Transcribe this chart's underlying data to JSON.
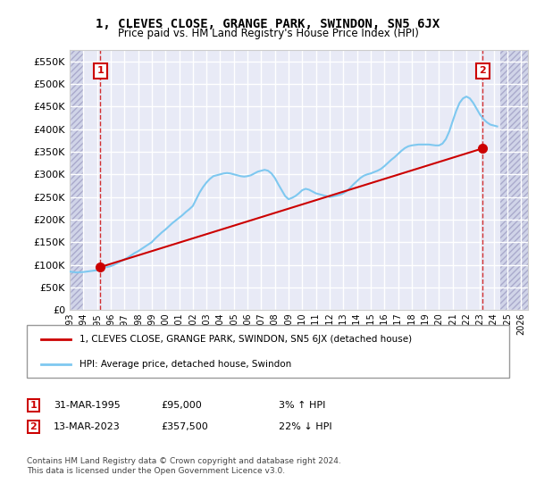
{
  "title": "1, CLEVES CLOSE, GRANGE PARK, SWINDON, SN5 6JX",
  "subtitle": "Price paid vs. HM Land Registry's House Price Index (HPI)",
  "ylabel": "",
  "ylim": [
    0,
    575000
  ],
  "yticks": [
    0,
    50000,
    100000,
    150000,
    200000,
    250000,
    300000,
    350000,
    400000,
    450000,
    500000,
    550000
  ],
  "ytick_labels": [
    "£0",
    "£50K",
    "£100K",
    "£150K",
    "£200K",
    "£250K",
    "£300K",
    "£350K",
    "£400K",
    "£450K",
    "£500K",
    "£550K"
  ],
  "xlim_start": 1993.0,
  "xlim_end": 2026.5,
  "xticks": [
    1993,
    1994,
    1995,
    1996,
    1997,
    1998,
    1999,
    2000,
    2001,
    2002,
    2003,
    2004,
    2005,
    2006,
    2007,
    2008,
    2009,
    2010,
    2011,
    2012,
    2013,
    2014,
    2015,
    2016,
    2017,
    2018,
    2019,
    2020,
    2021,
    2022,
    2023,
    2024,
    2025,
    2026
  ],
  "background_plot": "#e8eaf6",
  "background_hatch": "#d0d4e8",
  "grid_color": "#ffffff",
  "hpi_line_color": "#7ec8f0",
  "price_line_color": "#cc0000",
  "sale1_x": 1995.25,
  "sale1_y": 95000,
  "sale2_x": 2023.2,
  "sale2_y": 357500,
  "legend_label1": "1, CLEVES CLOSE, GRANGE PARK, SWINDON, SN5 6JX (detached house)",
  "legend_label2": "HPI: Average price, detached house, Swindon",
  "annotation1_label": "1",
  "annotation2_label": "2",
  "table_row1": [
    "1",
    "31-MAR-1995",
    "£95,000",
    "3% ↑ HPI"
  ],
  "table_row2": [
    "2",
    "13-MAR-2023",
    "£357,500",
    "22% ↓ HPI"
  ],
  "footer": "Contains HM Land Registry data © Crown copyright and database right 2024.\nThis data is licensed under the Open Government Licence v3.0.",
  "hpi_data_x": [
    1993.0,
    1993.25,
    1993.5,
    1993.75,
    1994.0,
    1994.25,
    1994.5,
    1994.75,
    1995.0,
    1995.25,
    1995.5,
    1995.75,
    1996.0,
    1996.25,
    1996.5,
    1996.75,
    1997.0,
    1997.25,
    1997.5,
    1997.75,
    1998.0,
    1998.25,
    1998.5,
    1998.75,
    1999.0,
    1999.25,
    1999.5,
    1999.75,
    2000.0,
    2000.25,
    2000.5,
    2000.75,
    2001.0,
    2001.25,
    2001.5,
    2001.75,
    2002.0,
    2002.25,
    2002.5,
    2002.75,
    2003.0,
    2003.25,
    2003.5,
    2003.75,
    2004.0,
    2004.25,
    2004.5,
    2004.75,
    2005.0,
    2005.25,
    2005.5,
    2005.75,
    2006.0,
    2006.25,
    2006.5,
    2006.75,
    2007.0,
    2007.25,
    2007.5,
    2007.75,
    2008.0,
    2008.25,
    2008.5,
    2008.75,
    2009.0,
    2009.25,
    2009.5,
    2009.75,
    2010.0,
    2010.25,
    2010.5,
    2010.75,
    2011.0,
    2011.25,
    2011.5,
    2011.75,
    2012.0,
    2012.25,
    2012.5,
    2012.75,
    2013.0,
    2013.25,
    2013.5,
    2013.75,
    2014.0,
    2014.25,
    2014.5,
    2014.75,
    2015.0,
    2015.25,
    2015.5,
    2015.75,
    2016.0,
    2016.25,
    2016.5,
    2016.75,
    2017.0,
    2017.25,
    2017.5,
    2017.75,
    2018.0,
    2018.25,
    2018.5,
    2018.75,
    2019.0,
    2019.25,
    2019.5,
    2019.75,
    2020.0,
    2020.25,
    2020.5,
    2020.75,
    2021.0,
    2021.25,
    2021.5,
    2021.75,
    2022.0,
    2022.25,
    2022.5,
    2022.75,
    2023.0,
    2023.25,
    2023.5,
    2023.75,
    2024.0,
    2024.25
  ],
  "hpi_data_y": [
    85000,
    84000,
    83000,
    83500,
    84000,
    85000,
    86000,
    87000,
    88000,
    92000,
    94000,
    95000,
    97000,
    100000,
    104000,
    108000,
    112000,
    116000,
    121000,
    126000,
    130000,
    135000,
    140000,
    145000,
    150000,
    158000,
    165000,
    172000,
    178000,
    185000,
    192000,
    198000,
    204000,
    210000,
    217000,
    223000,
    230000,
    245000,
    260000,
    272000,
    282000,
    290000,
    296000,
    298000,
    300000,
    302000,
    303000,
    302000,
    300000,
    298000,
    296000,
    295000,
    296000,
    298000,
    302000,
    306000,
    308000,
    310000,
    308000,
    302000,
    292000,
    278000,
    265000,
    252000,
    245000,
    248000,
    252000,
    258000,
    265000,
    268000,
    266000,
    262000,
    258000,
    256000,
    254000,
    252000,
    250000,
    251000,
    253000,
    255000,
    258000,
    263000,
    270000,
    278000,
    285000,
    292000,
    297000,
    300000,
    302000,
    305000,
    308000,
    312000,
    318000,
    325000,
    332000,
    338000,
    345000,
    352000,
    358000,
    362000,
    364000,
    365000,
    366000,
    366000,
    366000,
    366000,
    365000,
    364000,
    364000,
    368000,
    378000,
    395000,
    418000,
    440000,
    458000,
    468000,
    472000,
    468000,
    458000,
    445000,
    432000,
    422000,
    415000,
    410000,
    408000,
    406000
  ],
  "price_data_x": [
    1995.25,
    2023.2
  ],
  "price_data_y": [
    95000,
    357500
  ]
}
